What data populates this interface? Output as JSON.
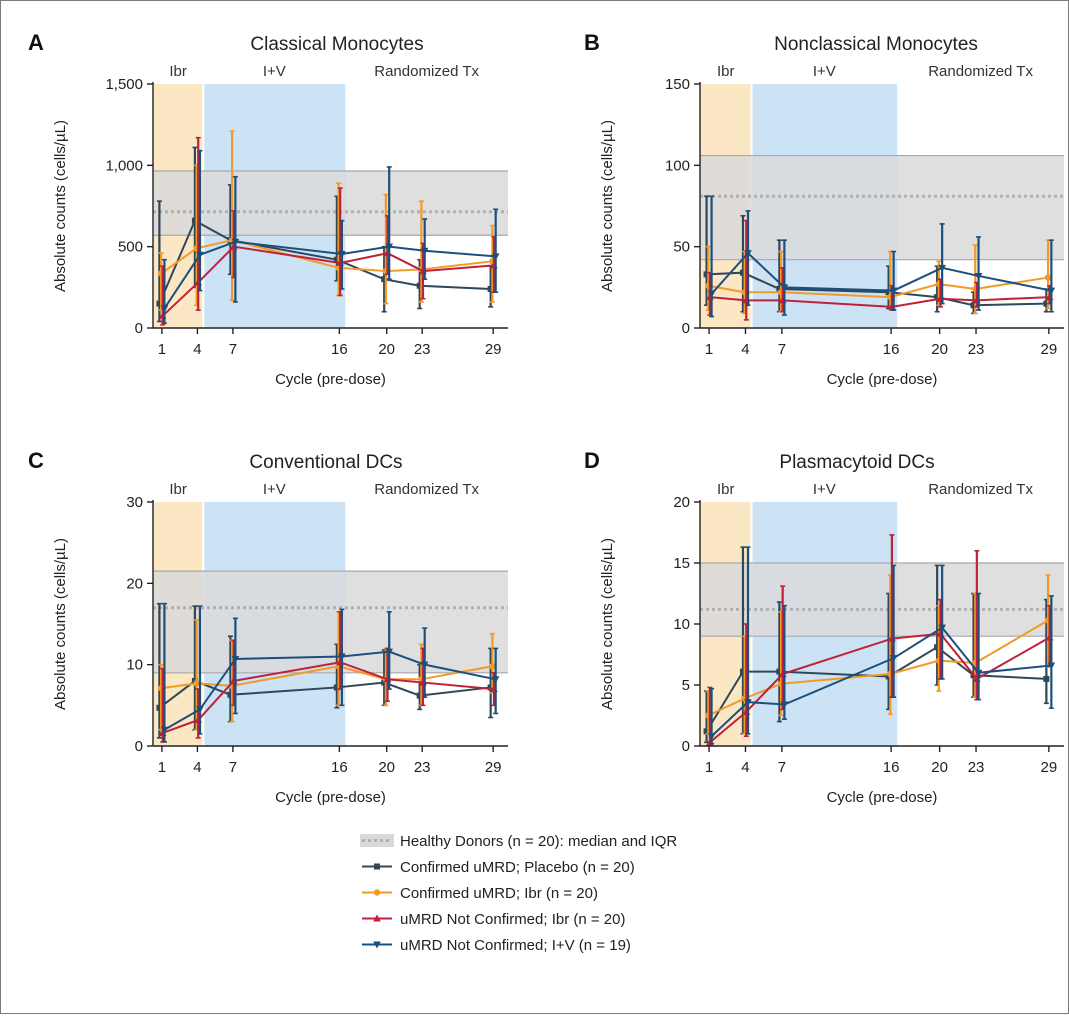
{
  "colors": {
    "placebo": "#2f4858",
    "ibr": "#f39a26",
    "ibr_not_confirmed": "#c0213a",
    "iv_not_confirmed": "#1d4f7c",
    "healthy_band": "#d9d9db",
    "healthy_line": "#b0b0b3",
    "phase_ibr": "#fbe7c4",
    "phase_iv": "#cce2f5"
  },
  "common": {
    "xlabel": "Cycle (pre-dose)",
    "ylabel": "Absolute counts (cells/µL)",
    "phase_labels": [
      "Ibr",
      "I+V",
      "Randomized Tx"
    ],
    "x_ticks": [
      1,
      4,
      7,
      16,
      20,
      23,
      29
    ]
  },
  "legend": {
    "items": [
      {
        "key": "healthy",
        "text": "Healthy Donors (n = 20): median and IQR"
      },
      {
        "key": "placebo",
        "text": "Confirmed uMRD; Placebo (n = 20)"
      },
      {
        "key": "ibr",
        "text": "Confirmed uMRD; Ibr (n = 20)"
      },
      {
        "key": "ibr_not_confirmed",
        "text": "uMRD Not Confirmed; Ibr (n = 20)"
      },
      {
        "key": "iv_not_confirmed",
        "text": "uMRD Not Confirmed; I+V (n = 19)"
      }
    ]
  },
  "chart_data": [
    {
      "type": "line",
      "letter": "A",
      "title": "Classical Monocytes",
      "xlabel": "Cycle (pre-dose)",
      "ylabel": "Absolute counts (cells/µL)",
      "ylim": [
        0,
        1500
      ],
      "y_ticks": [
        0,
        500,
        1000,
        1500
      ],
      "y_tick_labels": [
        "0",
        "500",
        "1,000",
        "1,500"
      ],
      "healthy": {
        "median": 715,
        "q1": 570,
        "q3": 965
      },
      "series": [
        {
          "key": "placebo",
          "x": [
            1,
            4,
            7,
            16,
            20,
            23,
            29
          ],
          "y": [
            150,
            660,
            540,
            420,
            300,
            260,
            240
          ],
          "lo": [
            40,
            250,
            330,
            290,
            100,
            120,
            130
          ],
          "hi": [
            780,
            1110,
            880,
            810,
            500,
            420,
            380
          ]
        },
        {
          "key": "ibr",
          "x": [
            1,
            4,
            7,
            16,
            20,
            23,
            29
          ],
          "y": [
            335,
            490,
            540,
            370,
            350,
            360,
            410
          ],
          "lo": [
            110,
            140,
            170,
            200,
            150,
            160,
            160
          ],
          "hi": [
            460,
            1000,
            1210,
            890,
            820,
            780,
            630
          ]
        },
        {
          "key": "ibr_not_confirmed",
          "x": [
            1,
            4,
            7,
            16,
            20,
            23,
            29
          ],
          "y": [
            75,
            280,
            500,
            400,
            460,
            350,
            385
          ],
          "lo": [
            20,
            110,
            310,
            200,
            330,
            180,
            220
          ],
          "hi": [
            380,
            1170,
            720,
            860,
            690,
            520,
            560
          ]
        },
        {
          "key": "iv_not_confirmed",
          "x": [
            1,
            4,
            7,
            16,
            20,
            23,
            29
          ],
          "y": [
            120,
            450,
            530,
            455,
            500,
            475,
            440
          ],
          "lo": [
            30,
            230,
            160,
            240,
            300,
            300,
            220
          ],
          "hi": [
            420,
            1090,
            930,
            660,
            990,
            670,
            730
          ]
        }
      ]
    },
    {
      "type": "line",
      "letter": "B",
      "title": "Nonclassical Monocytes",
      "xlabel": "Cycle (pre-dose)",
      "ylabel": "Absolute counts (cells/µL)",
      "ylim": [
        0,
        150
      ],
      "y_ticks": [
        0,
        50,
        100,
        150
      ],
      "y_tick_labels": [
        "0",
        "50",
        "100",
        "150"
      ],
      "healthy": {
        "median": 81,
        "q1": 42,
        "q3": 106
      },
      "series": [
        {
          "key": "placebo",
          "x": [
            1,
            4,
            7,
            16,
            20,
            23,
            29
          ],
          "y": [
            33,
            34,
            24,
            22,
            19,
            14,
            15
          ],
          "lo": [
            14,
            10,
            10,
            12,
            10,
            9,
            10
          ],
          "hi": [
            81,
            69,
            54,
            38,
            38,
            22,
            24
          ]
        },
        {
          "key": "ibr",
          "x": [
            1,
            4,
            7,
            16,
            20,
            23,
            29
          ],
          "y": [
            26,
            22,
            22,
            19,
            27,
            24,
            31
          ],
          "lo": [
            11,
            9,
            10,
            13,
            14,
            9,
            12
          ],
          "hi": [
            50,
            47,
            47,
            47,
            41,
            51,
            54
          ]
        },
        {
          "key": "ibr_not_confirmed",
          "x": [
            1,
            4,
            7,
            16,
            20,
            23,
            29
          ],
          "y": [
            19,
            17,
            17,
            13,
            18,
            17,
            19
          ],
          "lo": [
            8,
            5,
            10,
            11,
            13,
            13,
            15
          ],
          "hi": [
            34,
            66,
            37,
            26,
            30,
            28,
            26
          ]
        },
        {
          "key": "iv_not_confirmed",
          "x": [
            1,
            4,
            7,
            16,
            20,
            23,
            29
          ],
          "y": [
            21,
            46,
            25,
            23,
            37,
            32,
            23
          ],
          "lo": [
            7,
            14,
            8,
            11,
            15,
            11,
            10
          ],
          "hi": [
            81,
            72,
            54,
            47,
            64,
            56,
            54
          ]
        }
      ]
    },
    {
      "type": "line",
      "letter": "C",
      "title": "Conventional DCs",
      "xlabel": "Cycle (pre-dose)",
      "ylabel": "Absolute counts (cells/µL)",
      "ylim": [
        0,
        30
      ],
      "y_ticks": [
        0,
        10,
        20,
        30
      ],
      "y_tick_labels": [
        "0",
        "10",
        "20",
        "30"
      ],
      "healthy": {
        "median": 17,
        "q1": 9,
        "q3": 21.5
      },
      "series": [
        {
          "key": "placebo",
          "x": [
            1,
            4,
            7,
            16,
            20,
            23,
            29
          ],
          "y": [
            4.7,
            8.0,
            6.3,
            7.2,
            7.8,
            6.2,
            7.2
          ],
          "lo": [
            1.0,
            2.0,
            3.0,
            4.7,
            5.0,
            4.5,
            3.5
          ],
          "hi": [
            17.5,
            17.2,
            13.5,
            12.5,
            11.8,
            10.0,
            12.0
          ]
        },
        {
          "key": "ibr",
          "x": [
            1,
            4,
            7,
            16,
            20,
            23,
            29
          ],
          "y": [
            7.1,
            7.7,
            7.4,
            9.8,
            8.2,
            8.2,
            9.8
          ],
          "lo": [
            2.0,
            2.0,
            3.0,
            5.0,
            5.0,
            5.0,
            6.5
          ],
          "hi": [
            10.0,
            15.5,
            13.0,
            16.5,
            12.0,
            12.5,
            13.8
          ]
        },
        {
          "key": "ibr_not_confirmed",
          "x": [
            1,
            4,
            7,
            16,
            20,
            23,
            29
          ],
          "y": [
            1.6,
            3.2,
            8.0,
            10.3,
            8.2,
            7.8,
            7.0
          ],
          "lo": [
            0.5,
            1.0,
            5.0,
            7.0,
            5.5,
            5.0,
            5.0
          ],
          "hi": [
            9.5,
            7.0,
            13.0,
            16.5,
            12.0,
            12.0,
            9.0
          ]
        },
        {
          "key": "iv_not_confirmed",
          "x": [
            1,
            4,
            7,
            16,
            20,
            23,
            29
          ],
          "y": [
            2.0,
            4.5,
            10.7,
            11.0,
            11.6,
            10.0,
            8.2
          ],
          "lo": [
            0.5,
            1.5,
            4.0,
            5.0,
            7.0,
            6.0,
            4.0
          ],
          "hi": [
            17.5,
            17.2,
            15.7,
            16.8,
            16.5,
            14.5,
            12.0
          ]
        }
      ]
    },
    {
      "type": "line",
      "letter": "D",
      "title": "Plasmacytoid DCs",
      "xlabel": "Cycle (pre-dose)",
      "ylabel": "Absolute counts (cells/µL)",
      "ylim": [
        0,
        20
      ],
      "y_ticks": [
        0,
        5,
        10,
        15,
        20
      ],
      "y_tick_labels": [
        "0",
        "5",
        "10",
        "15",
        "20"
      ],
      "healthy": {
        "median": 11.2,
        "q1": 9.0,
        "q3": 15.0
      },
      "series": [
        {
          "key": "placebo",
          "x": [
            1,
            4,
            7,
            16,
            20,
            23,
            29
          ],
          "y": [
            1.2,
            6.1,
            6.1,
            5.7,
            8.1,
            5.8,
            5.5
          ],
          "lo": [
            0.3,
            1.0,
            2.0,
            3.0,
            5.0,
            4.0,
            3.5
          ],
          "hi": [
            4.5,
            16.3,
            11.8,
            12.5,
            14.8,
            12.5,
            12.0
          ]
        },
        {
          "key": "ibr",
          "x": [
            1,
            4,
            7,
            16,
            20,
            23,
            29
          ],
          "y": [
            2.5,
            3.9,
            5.1,
            5.9,
            7.0,
            6.8,
            10.3
          ],
          "lo": [
            1.0,
            1.0,
            2.5,
            2.6,
            4.5,
            4.0,
            6.5
          ],
          "hi": [
            4.5,
            9.0,
            11.0,
            14.0,
            11.5,
            12.5,
            14.0
          ]
        },
        {
          "key": "ibr_not_confirmed",
          "x": [
            1,
            4,
            7,
            16,
            20,
            23,
            29
          ],
          "y": [
            0.3,
            2.8,
            5.9,
            8.8,
            9.2,
            5.5,
            8.9
          ],
          "lo": [
            0.1,
            0.8,
            3.0,
            4.0,
            5.5,
            3.8,
            6.5
          ],
          "hi": [
            4.8,
            10.0,
            13.1,
            17.3,
            12.0,
            16.0,
            11.5
          ]
        },
        {
          "key": "iv_not_confirmed",
          "x": [
            1,
            4,
            7,
            16,
            20,
            23,
            29
          ],
          "y": [
            0.8,
            3.6,
            3.4,
            7.2,
            9.7,
            6.0,
            6.6
          ],
          "lo": [
            0.2,
            1.0,
            2.2,
            4.0,
            5.5,
            3.8,
            3.1
          ],
          "hi": [
            4.7,
            16.3,
            11.5,
            14.8,
            14.8,
            12.5,
            12.3
          ]
        }
      ]
    }
  ]
}
